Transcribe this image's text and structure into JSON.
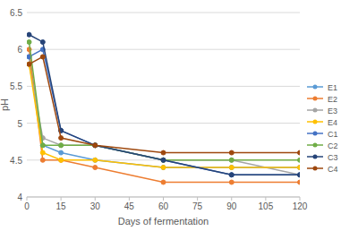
{
  "chart_data": {
    "type": "line",
    "x_label": "Days of fermentation",
    "y_label": "pH",
    "x": [
      1,
      7,
      15,
      30,
      60,
      90,
      120
    ],
    "xlim": [
      0,
      120
    ],
    "xticks": [
      0,
      15,
      30,
      45,
      60,
      75,
      90,
      105,
      120
    ],
    "ylim": [
      4,
      6.5
    ],
    "yticks": [
      4,
      4.5,
      5,
      5.5,
      6,
      6.5
    ],
    "grid": true,
    "legend": "right",
    "marker": "circle",
    "series": [
      {
        "name": "E1",
        "color": "#5b9bd5",
        "values": [
          5.9,
          4.7,
          4.6,
          4.5,
          4.4,
          4.4,
          4.4
        ]
      },
      {
        "name": "E2",
        "color": "#ed7d31",
        "values": [
          6.0,
          4.5,
          4.5,
          4.4,
          4.2,
          4.2,
          4.2
        ]
      },
      {
        "name": "E3",
        "color": "#a5a5a5",
        "values": [
          5.8,
          4.8,
          4.7,
          4.7,
          4.5,
          4.5,
          4.3
        ]
      },
      {
        "name": "E4",
        "color": "#ffc000",
        "values": [
          5.8,
          4.6,
          4.5,
          4.5,
          4.4,
          4.4,
          4.4
        ]
      },
      {
        "name": "C1",
        "color": "#4472c4",
        "values": [
          5.9,
          6.0,
          4.9,
          4.7,
          4.5,
          4.3,
          4.3
        ]
      },
      {
        "name": "C2",
        "color": "#70ad47",
        "values": [
          6.1,
          4.7,
          4.7,
          4.7,
          4.5,
          4.5,
          4.5
        ]
      },
      {
        "name": "C3",
        "color": "#264478",
        "values": [
          6.2,
          6.1,
          4.9,
          4.7,
          4.5,
          4.3,
          4.3
        ]
      },
      {
        "name": "C4",
        "color": "#9e480e",
        "values": [
          5.8,
          5.9,
          4.8,
          4.7,
          4.6,
          4.6,
          4.6
        ]
      }
    ]
  }
}
